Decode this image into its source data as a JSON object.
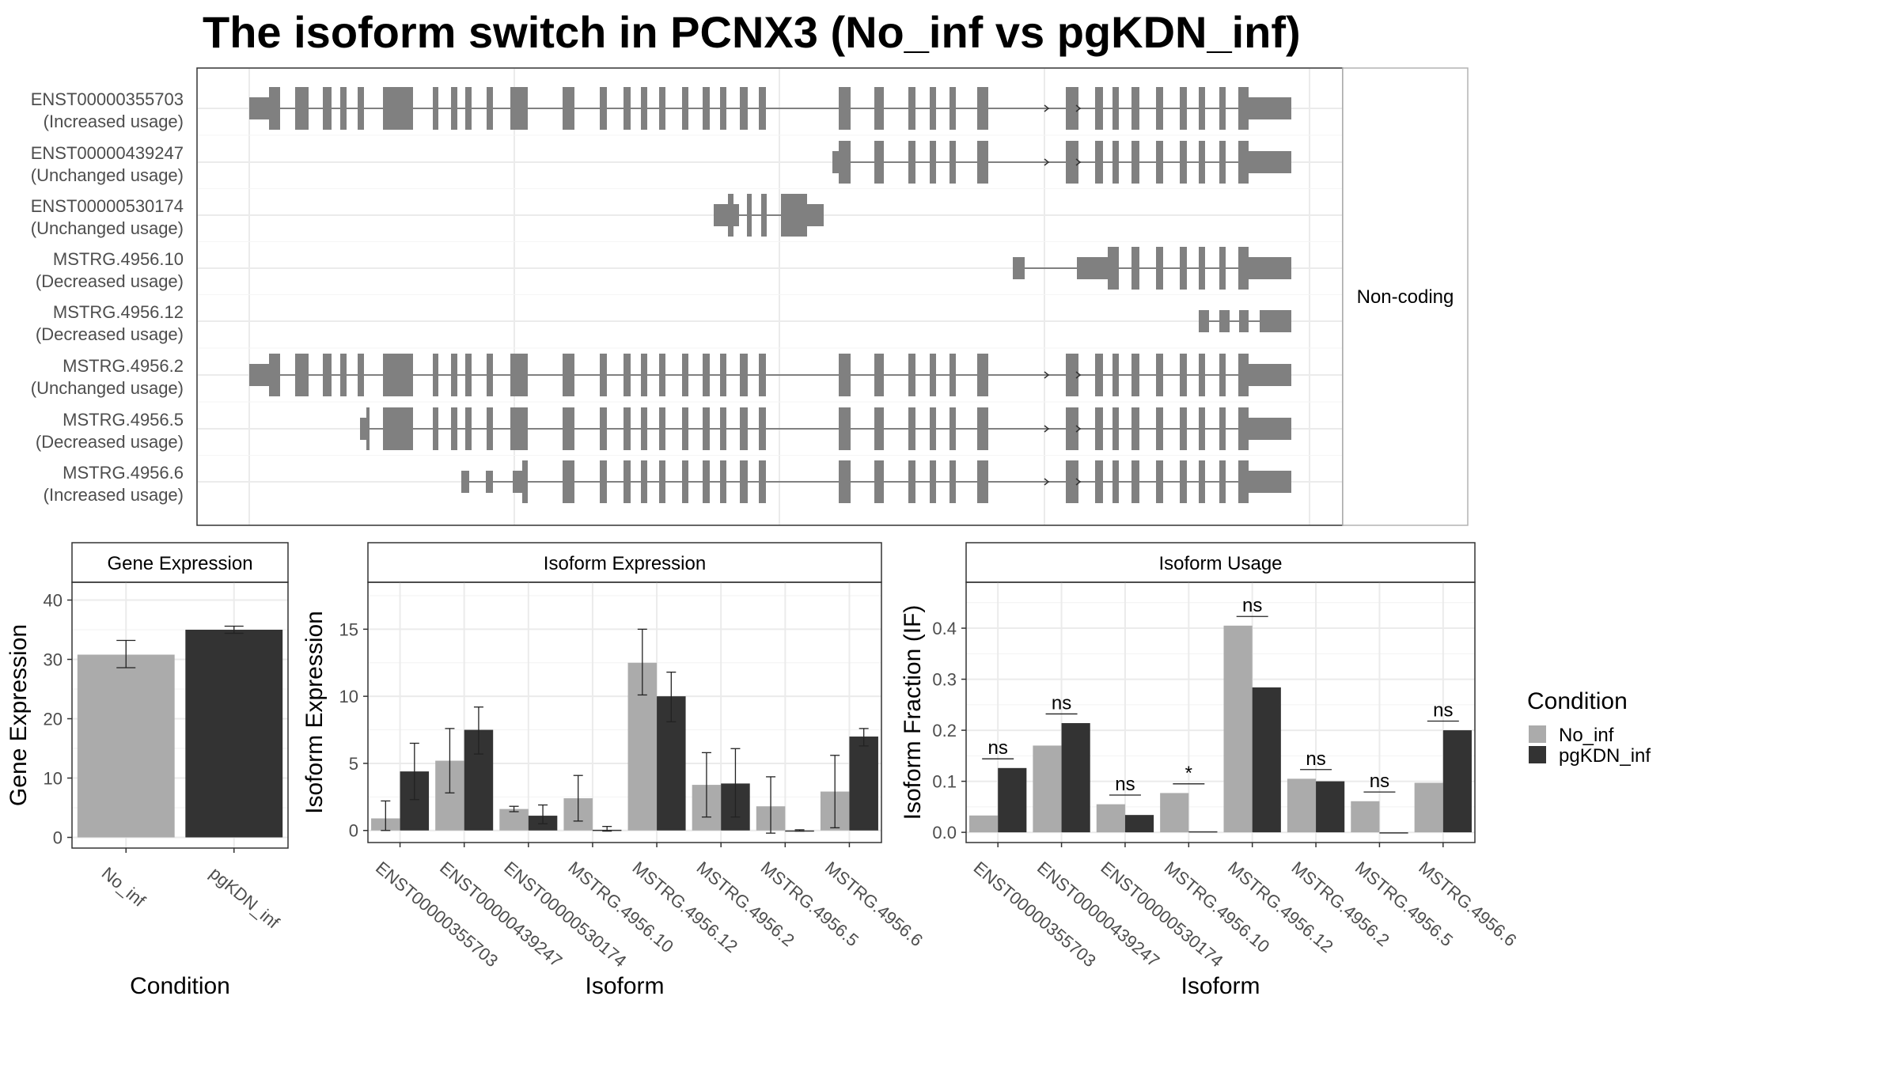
{
  "title": "The isoform switch in PCNX3 (No_inf vs pgKDN_inf)",
  "gene_model": {
    "side_label": "Non-coding",
    "transcripts": [
      {
        "id": "ENST00000355703",
        "usage": "(Increased usage)"
      },
      {
        "id": "ENST00000439247",
        "usage": "(Unchanged usage)"
      },
      {
        "id": "ENST00000530174",
        "usage": "(Unchanged usage)"
      },
      {
        "id": "MSTRG.4956.10",
        "usage": "(Decreased usage)"
      },
      {
        "id": "MSTRG.4956.12",
        "usage": "(Decreased usage)"
      },
      {
        "id": "MSTRG.4956.2",
        "usage": "(Unchanged usage)"
      },
      {
        "id": "MSTRG.4956.5",
        "usage": "(Decreased usage)"
      },
      {
        "id": "MSTRG.4956.6",
        "usage": "(Increased usage)"
      }
    ]
  },
  "legend": {
    "title": "Condition",
    "items": [
      {
        "label": "No_inf",
        "color": "#ababab"
      },
      {
        "label": "pgKDN_inf",
        "color": "#333333"
      }
    ]
  },
  "chart_data": [
    {
      "type": "bar",
      "title": "Gene Expression",
      "xlabel": "Condition",
      "ylabel": "Gene Expression",
      "categories": [
        "No_inf",
        "pgKDN_inf"
      ],
      "values": [
        30.8,
        35.0
      ],
      "errors": [
        [
          28.6,
          33.2
        ],
        [
          34.4,
          35.6
        ]
      ],
      "colors": [
        "#ababab",
        "#333333"
      ],
      "ylim": [
        -1.8,
        43
      ],
      "yticks": [
        0,
        10,
        20,
        30,
        40
      ]
    },
    {
      "type": "bar",
      "title": "Isoform Expression",
      "xlabel": "Isoform",
      "ylabel": "Isoform Expression",
      "categories": [
        "ENST00000355703",
        "ENST00000439247",
        "ENST00000530174",
        "MSTRG.4956.10",
        "MSTRG.4956.12",
        "MSTRG.4956.2",
        "MSTRG.4956.5",
        "MSTRG.4956.6"
      ],
      "series": [
        {
          "name": "No_inf",
          "values": [
            0.9,
            5.2,
            1.6,
            2.4,
            12.5,
            3.4,
            1.8,
            2.9
          ],
          "errors": [
            [
              0.0,
              2.2
            ],
            [
              2.8,
              7.6
            ],
            [
              1.4,
              1.8
            ],
            [
              0.7,
              4.1
            ],
            [
              10.1,
              15.0
            ],
            [
              1.0,
              5.8
            ],
            [
              -0.2,
              4.0
            ],
            [
              0.2,
              5.6
            ]
          ]
        },
        {
          "name": "pgKDN_inf",
          "values": [
            4.4,
            7.5,
            1.1,
            0.05,
            10.0,
            3.5,
            0.0,
            7.0
          ],
          "errors": [
            [
              2.3,
              6.5
            ],
            [
              5.7,
              9.2
            ],
            [
              0.5,
              1.9
            ],
            [
              -0.05,
              0.3
            ],
            [
              8.1,
              11.8
            ],
            [
              1.0,
              6.1
            ],
            [
              -0.05,
              0.05
            ],
            [
              6.3,
              7.6
            ]
          ]
        }
      ],
      "ylim": [
        -0.9,
        18.5
      ],
      "yticks": [
        0,
        5,
        10,
        15
      ]
    },
    {
      "type": "bar",
      "title": "Isoform Usage",
      "xlabel": "Isoform",
      "ylabel": "Isoform Fraction (IF)",
      "categories": [
        "ENST00000355703",
        "ENST00000439247",
        "ENST00000530174",
        "MSTRG.4956.10",
        "MSTRG.4956.12",
        "MSTRG.4956.2",
        "MSTRG.4956.5",
        "MSTRG.4956.6"
      ],
      "series": [
        {
          "name": "No_inf",
          "values": [
            0.033,
            0.17,
            0.055,
            0.077,
            0.405,
            0.105,
            0.061,
            0.097
          ]
        },
        {
          "name": "pgKDN_inf",
          "values": [
            0.126,
            0.214,
            0.034,
            0.002,
            0.284,
            0.1,
            0.0,
            0.2
          ]
        }
      ],
      "significance": [
        "ns",
        "ns",
        "ns",
        "*",
        "ns",
        "ns",
        "ns",
        "ns"
      ],
      "ylim": [
        -0.02,
        0.49
      ],
      "yticks": [
        0.0,
        0.1,
        0.2,
        0.3,
        0.4
      ]
    }
  ]
}
